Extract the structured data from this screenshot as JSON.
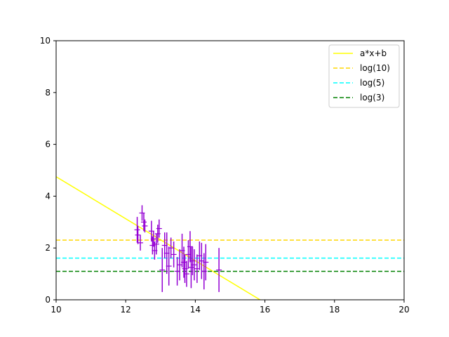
{
  "chart_data": {
    "type": "scatter",
    "title": "",
    "xlabel": "",
    "ylabel": "",
    "xlim": [
      10,
      20
    ],
    "ylim": [
      0,
      10
    ],
    "x_ticks": [
      10,
      12,
      14,
      16,
      18,
      20
    ],
    "y_ticks": [
      0,
      2,
      4,
      6,
      8,
      10
    ],
    "x_tick_labels": [
      "10",
      "12",
      "14",
      "16",
      "18",
      "20"
    ],
    "y_tick_labels": [
      "0",
      "2",
      "4",
      "6",
      "8",
      "10"
    ],
    "grid": false,
    "legend_position": "top-right",
    "points": {
      "color": "#9400d3",
      "marker": "+",
      "data": [
        {
          "x": 12.33,
          "y": 2.7,
          "err": 0.5
        },
        {
          "x": 12.35,
          "y": 2.5,
          "err": 0.35
        },
        {
          "x": 12.42,
          "y": 2.2,
          "err": 0.3
        },
        {
          "x": 12.47,
          "y": 3.35,
          "err": 0.3
        },
        {
          "x": 12.52,
          "y": 3.0,
          "err": 0.35
        },
        {
          "x": 12.55,
          "y": 2.85,
          "err": 0.25
        },
        {
          "x": 12.74,
          "y": 2.65,
          "err": 0.4
        },
        {
          "x": 12.77,
          "y": 2.1,
          "err": 0.35
        },
        {
          "x": 12.8,
          "y": 2.35,
          "err": 0.3
        },
        {
          "x": 12.83,
          "y": 1.9,
          "err": 0.35
        },
        {
          "x": 12.88,
          "y": 2.15,
          "err": 0.4
        },
        {
          "x": 12.92,
          "y": 2.55,
          "err": 0.35
        },
        {
          "x": 12.96,
          "y": 2.75,
          "err": 0.35
        },
        {
          "x": 13.05,
          "y": 1.15,
          "err": 0.85
        },
        {
          "x": 13.12,
          "y": 2.1,
          "err": 0.5
        },
        {
          "x": 13.18,
          "y": 1.8,
          "err": 0.8
        },
        {
          "x": 13.24,
          "y": 1.3,
          "err": 0.75
        },
        {
          "x": 13.3,
          "y": 2.0,
          "err": 0.4
        },
        {
          "x": 13.38,
          "y": 1.75,
          "err": 0.5
        },
        {
          "x": 13.48,
          "y": 1.1,
          "err": 0.55
        },
        {
          "x": 13.55,
          "y": 1.35,
          "err": 0.6
        },
        {
          "x": 13.62,
          "y": 1.9,
          "err": 0.65
        },
        {
          "x": 13.67,
          "y": 1.45,
          "err": 0.6
        },
        {
          "x": 13.7,
          "y": 1.2,
          "err": 0.55
        },
        {
          "x": 13.75,
          "y": 1.0,
          "err": 0.5
        },
        {
          "x": 13.8,
          "y": 1.75,
          "err": 0.55
        },
        {
          "x": 13.85,
          "y": 2.05,
          "err": 0.6
        },
        {
          "x": 13.88,
          "y": 1.25,
          "err": 0.8
        },
        {
          "x": 13.92,
          "y": 1.5,
          "err": 0.55
        },
        {
          "x": 13.97,
          "y": 1.35,
          "err": 0.6
        },
        {
          "x": 14.05,
          "y": 1.2,
          "err": 0.55
        },
        {
          "x": 14.12,
          "y": 1.7,
          "err": 0.55
        },
        {
          "x": 14.18,
          "y": 1.5,
          "err": 0.7
        },
        {
          "x": 14.25,
          "y": 1.1,
          "err": 0.7
        },
        {
          "x": 14.3,
          "y": 1.45,
          "err": 0.7
        },
        {
          "x": 14.68,
          "y": 1.15,
          "err": 0.85
        }
      ]
    },
    "series": [
      {
        "name": "a*x+b",
        "kind": "line",
        "color": "#ffff00",
        "style": "solid",
        "x": [
          10,
          15.86
        ],
        "y": [
          4.75,
          0
        ]
      },
      {
        "name": "log(10)",
        "kind": "hline",
        "color": "#ffd700",
        "style": "dashed",
        "y": 2.3026
      },
      {
        "name": "log(5)",
        "kind": "hline",
        "color": "#00ffff",
        "style": "dashed",
        "y": 1.6094
      },
      {
        "name": "log(3)",
        "kind": "hline",
        "color": "#008000",
        "style": "dashed",
        "y": 1.0986
      }
    ]
  }
}
